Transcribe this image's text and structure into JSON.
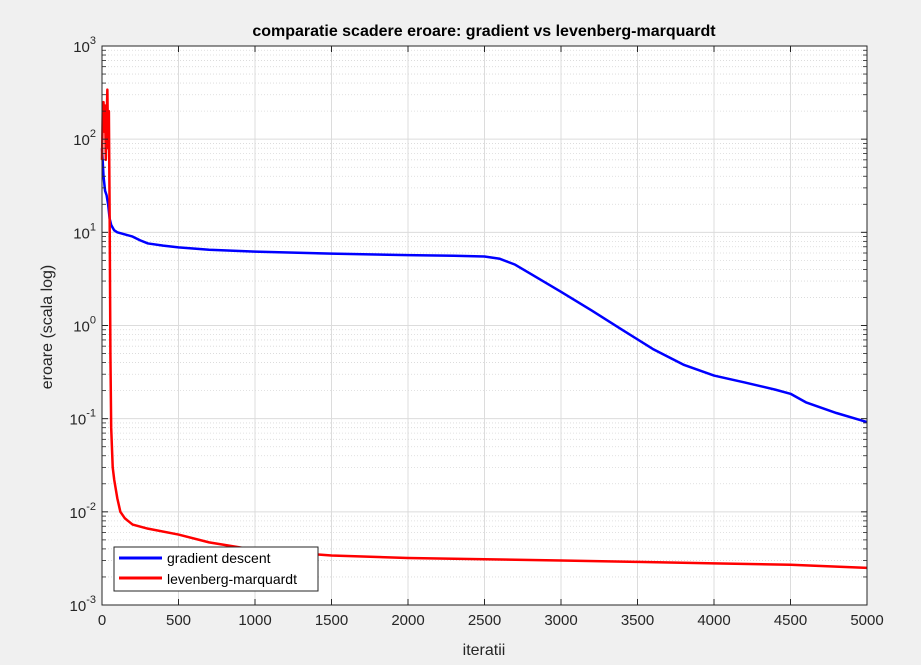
{
  "chart_data": {
    "type": "line",
    "title": "comparatie scadere eroare: gradient vs levenberg-marquardt",
    "xlabel": "iteratii",
    "ylabel": "eroare (scala log)",
    "xlim": [
      0,
      5000
    ],
    "ylim": [
      0.001,
      1000
    ],
    "yscale": "log",
    "grid": true,
    "legend_position": "bottom-left",
    "xticks": [
      "0",
      "500",
      "1000",
      "1500",
      "2000",
      "2500",
      "3000",
      "3500",
      "4000",
      "4500",
      "5000"
    ],
    "yticks": [
      {
        "base": "10",
        "exp": "3"
      },
      {
        "base": "10",
        "exp": "2"
      },
      {
        "base": "10",
        "exp": "1"
      },
      {
        "base": "10",
        "exp": "0"
      },
      {
        "base": "10",
        "exp": "-1"
      },
      {
        "base": "10",
        "exp": "-2"
      },
      {
        "base": "10",
        "exp": "-3"
      }
    ],
    "series": [
      {
        "name": "gradient descent",
        "color": "#0000ff",
        "x": [
          0,
          10,
          20,
          30,
          40,
          50,
          60,
          80,
          100,
          150,
          200,
          250,
          300,
          400,
          500,
          700,
          1000,
          1500,
          2000,
          2300,
          2500,
          2600,
          2700,
          2800,
          3000,
          3200,
          3400,
          3600,
          3800,
          4000,
          4200,
          4400,
          4500,
          4600,
          4800,
          5000
        ],
        "y": [
          80,
          40,
          28,
          25,
          20,
          14,
          12,
          10.5,
          10,
          9.5,
          9,
          8.2,
          7.6,
          7.2,
          6.9,
          6.5,
          6.2,
          5.9,
          5.7,
          5.6,
          5.5,
          5.2,
          4.5,
          3.6,
          2.3,
          1.45,
          0.9,
          0.56,
          0.38,
          0.29,
          0.245,
          0.205,
          0.185,
          0.15,
          0.115,
          0.092
        ]
      },
      {
        "name": "levenberg-marquardt",
        "color": "#ff0000",
        "x": [
          0,
          5,
          10,
          15,
          20,
          25,
          30,
          35,
          40,
          45,
          50,
          55,
          60,
          70,
          80,
          100,
          120,
          150,
          200,
          300,
          500,
          700,
          1000,
          1500,
          2000,
          2500,
          3000,
          3500,
          4000,
          4500,
          5000
        ],
        "y": [
          60,
          200,
          250,
          120,
          230,
          60,
          150,
          340,
          80,
          200,
          15,
          0.5,
          0.08,
          0.03,
          0.022,
          0.014,
          0.01,
          0.0085,
          0.0073,
          0.0066,
          0.0057,
          0.0047,
          0.0039,
          0.0034,
          0.0032,
          0.0031,
          0.003,
          0.0029,
          0.0028,
          0.0027,
          0.0025
        ]
      }
    ]
  }
}
